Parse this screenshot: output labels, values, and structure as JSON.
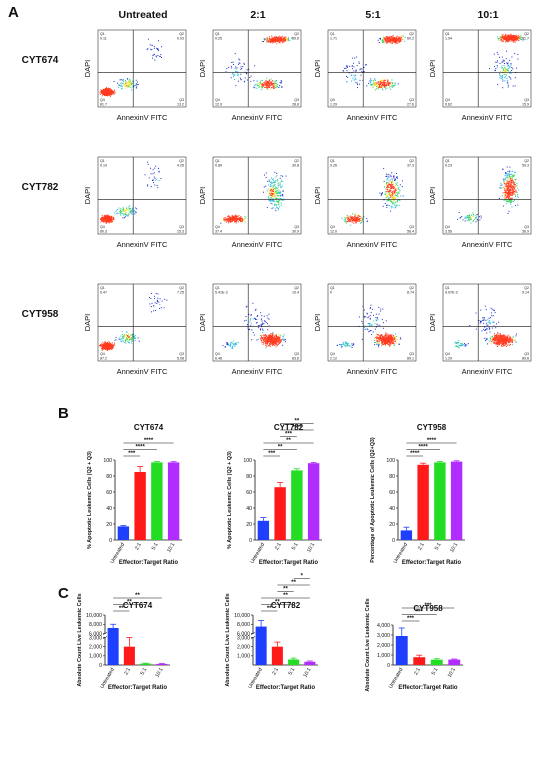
{
  "panel_labels": {
    "a": "A",
    "b": "B",
    "c": "C"
  },
  "flow": {
    "columns": [
      "Untreated",
      "2:1",
      "5:1",
      "10:1"
    ],
    "rows": [
      "CYT674",
      "CYT782",
      "CYT958"
    ],
    "x_axis_label": "AnnexinV FITC",
    "y_axis_label": "DAPI",
    "plots": [
      [
        {
          "q1": "0.11",
          "q2": "0.03",
          "q3": "13.2",
          "q4": "81.7",
          "cluster": "live"
        },
        {
          "q1": "0.25",
          "q2": "59.6",
          "q3": "28.8",
          "q4": "12.9",
          "cluster": "split"
        },
        {
          "q1": "1.71",
          "q2": "60.2",
          "q3": "27.6",
          "q4": "1.29",
          "cluster": "split"
        },
        {
          "q1": "1.94",
          "q2": "81.7",
          "q3": "15.9",
          "q4": "0.62",
          "cluster": "topright"
        }
      ],
      [
        {
          "q1": "0.19",
          "q2": "4.26",
          "q3": "15.3",
          "q4": "80.3",
          "cluster": "live"
        },
        {
          "q1": "0.89",
          "q2": "30.8",
          "q3": "30.9",
          "q4": "37.4",
          "cluster": "hook"
        },
        {
          "q1": "0.26",
          "q2": "37.3",
          "q3": "56.4",
          "q4": "12.0",
          "cluster": "hook2"
        },
        {
          "q1": "0.23",
          "q2": "59.3",
          "q3": "36.9",
          "q4": "3.56",
          "cluster": "hook3"
        }
      ],
      [
        {
          "q1": "0.47",
          "q2": "7.25",
          "q3": "5.08",
          "q4": "87.2",
          "cluster": "live"
        },
        {
          "q1": "5.41E-3",
          "q2": "10.4",
          "q3": "83.6",
          "q4": "6.48",
          "cluster": "q3"
        },
        {
          "q1": "0",
          "q2": "8.74",
          "q3": "89.1",
          "q4": "2.12",
          "cluster": "q3"
        },
        {
          "q1": "9.97E-3",
          "q2": "9.14",
          "q3": "89.6",
          "q4": "1.29",
          "cluster": "q3"
        }
      ]
    ]
  },
  "colors": {
    "untreated": "#1f3fff",
    "r21": "#ff1a1a",
    "r51": "#22dd22",
    "r101": "#b12cff"
  },
  "chart_data": [
    {
      "type": "bar",
      "title": "CYT674",
      "categories": [
        "Untreated",
        "2:1",
        "5:1",
        "10:1"
      ],
      "values": [
        17,
        85,
        97,
        97
      ],
      "errors": [
        1,
        7,
        1,
        1
      ],
      "ylabel": "% Apoptotic Leukemic Cells (Q2 + Q3)",
      "xlabel": "Effector:Target Ratio",
      "ylim": [
        0,
        100
      ],
      "yticks": [
        0,
        20,
        40,
        60,
        80,
        100
      ],
      "significance": [
        {
          "from": 0,
          "to": 1,
          "label": "***"
        },
        {
          "from": 0,
          "to": 2,
          "label": "****"
        },
        {
          "from": 0,
          "to": 3,
          "label": "****"
        }
      ]
    },
    {
      "type": "bar",
      "title": "CYT782",
      "categories": [
        "Untreated",
        "2:1",
        "5:1",
        "10:1"
      ],
      "values": [
        24,
        66,
        87,
        96
      ],
      "errors": [
        4,
        6,
        2,
        1
      ],
      "ylabel": "% Apoptotic Leukemic Cells (Q2 + Q3)",
      "xlabel": "Effector:Target Ratio",
      "ylim": [
        0,
        100
      ],
      "yticks": [
        0,
        20,
        40,
        60,
        80,
        100
      ],
      "significance": [
        {
          "from": 0,
          "to": 1,
          "label": "***"
        },
        {
          "from": 0,
          "to": 2,
          "label": "**"
        },
        {
          "from": 0,
          "to": 3,
          "label": "**"
        },
        {
          "from": 1,
          "to": 2,
          "label": "***"
        },
        {
          "from": 1,
          "to": 3,
          "label": "****"
        },
        {
          "from": 1,
          "to": 3,
          "label": "**"
        }
      ]
    },
    {
      "type": "bar",
      "title": "CYT958",
      "categories": [
        "Untreated",
        "2:1",
        "5:1",
        "10:1"
      ],
      "values": [
        12,
        94,
        97,
        98
      ],
      "errors": [
        4,
        2,
        1,
        1
      ],
      "ylabel": "Percentage of Apoptotic Leukemic Cells (Q2+Q3)",
      "xlabel": "Effector:Target Ratio",
      "ylim": [
        0,
        100
      ],
      "yticks": [
        0,
        20,
        40,
        60,
        80,
        100
      ],
      "significance": [
        {
          "from": 0,
          "to": 1,
          "label": "****"
        },
        {
          "from": 0,
          "to": 2,
          "label": "****"
        },
        {
          "from": 0,
          "to": 3,
          "label": "****"
        }
      ]
    },
    {
      "type": "bar",
      "title": "CYT674",
      "categories": [
        "Untreated",
        "2:1",
        "5:1",
        "10:1"
      ],
      "values": [
        7200,
        2000,
        150,
        120
      ],
      "errors": [
        800,
        1000,
        50,
        40
      ],
      "ylabel": "Absolute Count Live Leukemic Cells",
      "xlabel": "Effector:Target Ratio",
      "broken_axis": true,
      "lower_range": [
        0,
        3000
      ],
      "upper_range": [
        6000,
        10000
      ],
      "yticks": [
        0,
        1000,
        2000,
        3000,
        6000,
        8000,
        10000
      ],
      "ytick_labels": [
        "0",
        "1,000",
        "2,000",
        "3,000",
        "6,000",
        "8,000",
        "10,000"
      ],
      "significance": [
        {
          "from": 0,
          "to": 1,
          "label": "**"
        },
        {
          "from": 0,
          "to": 2,
          "label": "**"
        },
        {
          "from": 0,
          "to": 3,
          "label": "**"
        }
      ]
    },
    {
      "type": "bar",
      "title": "CYT782",
      "categories": [
        "Untreated",
        "2:1",
        "5:1",
        "10:1"
      ],
      "values": [
        7500,
        2000,
        600,
        350
      ],
      "errors": [
        1300,
        500,
        150,
        90
      ],
      "ylabel": "Absolute Count Live Leukemic Cells",
      "xlabel": "Effector:Target Ratio",
      "broken_axis": true,
      "lower_range": [
        0,
        3000
      ],
      "upper_range": [
        6000,
        10000
      ],
      "yticks": [
        1000,
        2000,
        3000,
        6000,
        8000,
        10000
      ],
      "ytick_labels": [
        "1,000",
        "2,000",
        "3,000",
        "6,000",
        "8,000",
        "10,000"
      ],
      "significance": [
        {
          "from": 0,
          "to": 1,
          "label": "**"
        },
        {
          "from": 0,
          "to": 2,
          "label": "**"
        },
        {
          "from": 0,
          "to": 3,
          "label": "**"
        },
        {
          "from": 1,
          "to": 2,
          "label": "**"
        },
        {
          "from": 1,
          "to": 3,
          "label": "**"
        },
        {
          "from": 2,
          "to": 3,
          "label": "*"
        }
      ]
    },
    {
      "type": "bar",
      "title": "CYT958",
      "categories": [
        "Untreated",
        "2:1",
        "5:1",
        "10:1"
      ],
      "values": [
        2900,
        780,
        530,
        540
      ],
      "errors": [
        800,
        200,
        100,
        60
      ],
      "ylabel": "Absolute Count Live Leukemic Cells",
      "xlabel": "Effector:Target Ratio",
      "ylim": [
        0,
        4000
      ],
      "yticks": [
        0,
        1000,
        2000,
        3000,
        4000
      ],
      "ytick_labels": [
        "0",
        "1,000",
        "2,000",
        "3,000",
        "4,000"
      ],
      "significance": [
        {
          "from": 0,
          "to": 1,
          "label": "***"
        },
        {
          "from": 0,
          "to": 2,
          "label": "***"
        },
        {
          "from": 0,
          "to": 3,
          "label": "***"
        }
      ]
    }
  ]
}
